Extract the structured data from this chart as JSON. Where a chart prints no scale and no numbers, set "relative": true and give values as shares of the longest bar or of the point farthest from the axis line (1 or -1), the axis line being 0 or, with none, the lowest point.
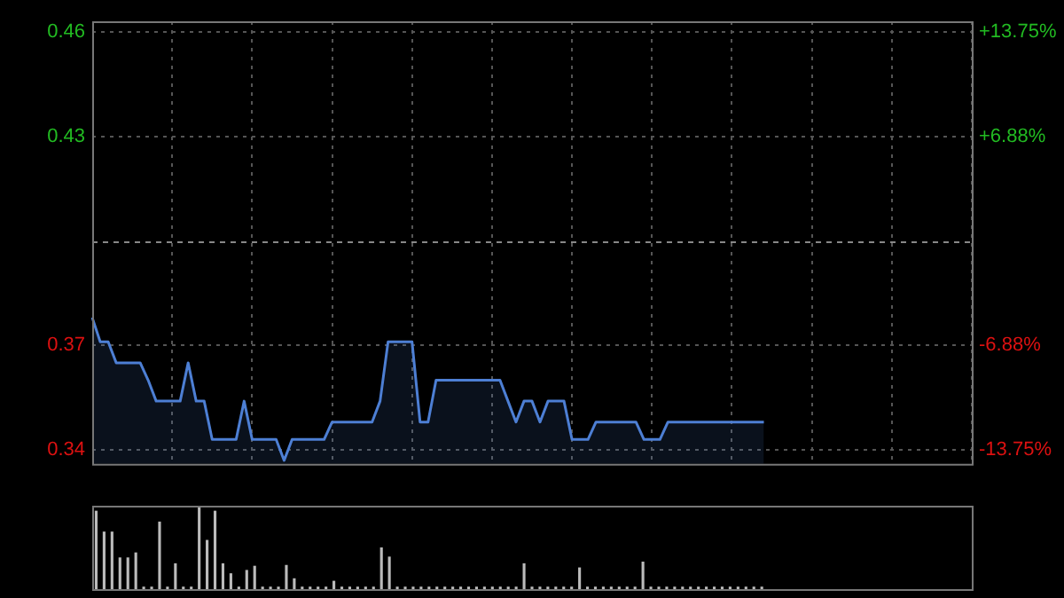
{
  "chart_data": [
    {
      "type": "area",
      "categories": [
        null,
        null,
        null,
        null,
        null,
        null,
        null,
        null,
        null,
        null,
        null,
        null,
        null,
        null,
        null,
        null,
        null,
        null,
        null,
        null,
        null,
        null,
        null,
        null,
        null,
        null,
        null,
        null,
        null,
        null,
        null,
        null,
        null,
        null,
        null,
        null,
        null,
        null,
        null,
        null,
        null,
        null,
        null,
        null,
        null,
        null,
        null,
        null,
        null,
        null,
        null,
        null,
        null,
        null,
        null,
        null,
        null,
        null,
        null,
        null,
        null,
        null,
        null,
        null,
        null,
        null,
        null,
        null,
        null,
        null,
        null,
        null,
        null,
        null,
        null,
        null,
        null,
        null,
        null,
        null,
        null,
        null,
        null,
        null,
        null,
        null,
        null,
        null,
        null,
        null,
        null,
        null,
        null,
        null,
        null,
        null,
        null,
        null,
        null,
        null,
        null,
        null,
        null,
        null,
        null,
        null,
        null,
        null,
        null,
        null,
        null
      ],
      "color": "#4d7fd4",
      "values": [
        0.378,
        0.371,
        0.371,
        0.365,
        0.365,
        0.365,
        0.365,
        0.36,
        0.354,
        0.354,
        0.354,
        0.354,
        0.365,
        0.354,
        0.354,
        0.343,
        0.343,
        0.343,
        0.343,
        0.354,
        0.343,
        0.343,
        0.343,
        0.343,
        0.337,
        0.343,
        0.343,
        0.343,
        0.343,
        0.343,
        0.348,
        0.348,
        0.348,
        0.348,
        0.348,
        0.348,
        0.354,
        0.371,
        0.371,
        0.371,
        0.371,
        0.348,
        0.348,
        0.36,
        0.36,
        0.36,
        0.36,
        0.36,
        0.36,
        0.36,
        0.36,
        0.36,
        0.354,
        0.348,
        0.354,
        0.354,
        0.348,
        0.354,
        0.354,
        0.354,
        0.343,
        0.343,
        0.343,
        0.348,
        0.348,
        0.348,
        0.348,
        0.348,
        0.348,
        0.343,
        0.343,
        0.343,
        0.348,
        0.348,
        0.348,
        0.348,
        0.348,
        0.348,
        0.348,
        0.348,
        0.348,
        0.348,
        0.348,
        0.348,
        0.348,
        null,
        null,
        null,
        null,
        null,
        null,
        null,
        null,
        null,
        null,
        null,
        null,
        null,
        null,
        null,
        null,
        null,
        null,
        null,
        null,
        null,
        null,
        null,
        null,
        null,
        null
      ],
      "ylim": [
        0.336,
        0.463
      ],
      "yticks": [
        0.46,
        0.43,
        0.37,
        0.34
      ],
      "y2lim": [
        -14.67,
        14.44
      ],
      "y2ticks": [
        {
          "value": 13.75,
          "label": "+13.75%"
        },
        {
          "value": 6.88,
          "label": "+6.88%"
        },
        {
          "value": -6.88,
          "label": "-6.88%"
        },
        {
          "value": -13.75,
          "label": "-13.75%"
        }
      ],
      "ref_lines": [
        {
          "axis": "y",
          "value": 0.4,
          "color": "#888888",
          "line_style": "dashed"
        }
      ],
      "grid": true
    },
    {
      "type": "bar",
      "relative": true,
      "color": "#bbbbbb",
      "categories": [
        null,
        null,
        null,
        null,
        null,
        null,
        null,
        null,
        null,
        null,
        null,
        null,
        null,
        null,
        null,
        null,
        null,
        null,
        null,
        null,
        null,
        null,
        null,
        null,
        null,
        null,
        null,
        null,
        null,
        null,
        null,
        null,
        null,
        null,
        null,
        null,
        null,
        null,
        null,
        null,
        null,
        null,
        null,
        null,
        null,
        null,
        null,
        null,
        null,
        null,
        null,
        null,
        null,
        null,
        null,
        null,
        null,
        null,
        null,
        null,
        null,
        null,
        null,
        null,
        null,
        null,
        null,
        null,
        null,
        null,
        null,
        null,
        null,
        null,
        null,
        null,
        null,
        null,
        null,
        null,
        null,
        null,
        null,
        null,
        null,
        null,
        null,
        null,
        null,
        null,
        null,
        null,
        null,
        null,
        null,
        null,
        null,
        null,
        null,
        null,
        null,
        null,
        null,
        null,
        null,
        null,
        null,
        null,
        null,
        null,
        null
      ],
      "values": [
        0.94,
        0.69,
        0.69,
        0.38,
        0.38,
        0.44,
        0.03,
        0.03,
        0.81,
        0.03,
        0.31,
        0.03,
        0.03,
        1,
        0.59,
        0.94,
        0.31,
        0.19,
        0.03,
        0.23,
        0.28,
        0.03,
        0.03,
        0.03,
        0.29,
        0.13,
        0.03,
        0.03,
        0.03,
        0.03,
        0.1,
        0.03,
        0.03,
        0.03,
        0.03,
        0.03,
        0.5,
        0.39,
        0.03,
        0.03,
        0.03,
        0.03,
        0.03,
        0.03,
        0.03,
        0.03,
        0.03,
        0.03,
        0.03,
        0.03,
        0.03,
        0.03,
        0.03,
        0.03,
        0.31,
        0.03,
        0.03,
        0.03,
        0.03,
        0.03,
        0.03,
        0.26,
        0.03,
        0.03,
        0.03,
        0.03,
        0.03,
        0.03,
        0.03,
        0.33,
        0.03,
        0.03,
        0.03,
        0.03,
        0.03,
        0.03,
        0.03,
        0.03,
        0.03,
        0.03,
        0.03,
        0.03,
        0.03,
        0.03,
        0.03,
        null,
        null,
        null,
        null,
        null,
        null,
        null,
        null,
        null,
        null,
        null,
        null,
        null,
        null,
        null,
        null,
        null,
        null,
        null,
        null,
        null,
        null,
        null,
        null,
        null,
        null
      ]
    }
  ]
}
